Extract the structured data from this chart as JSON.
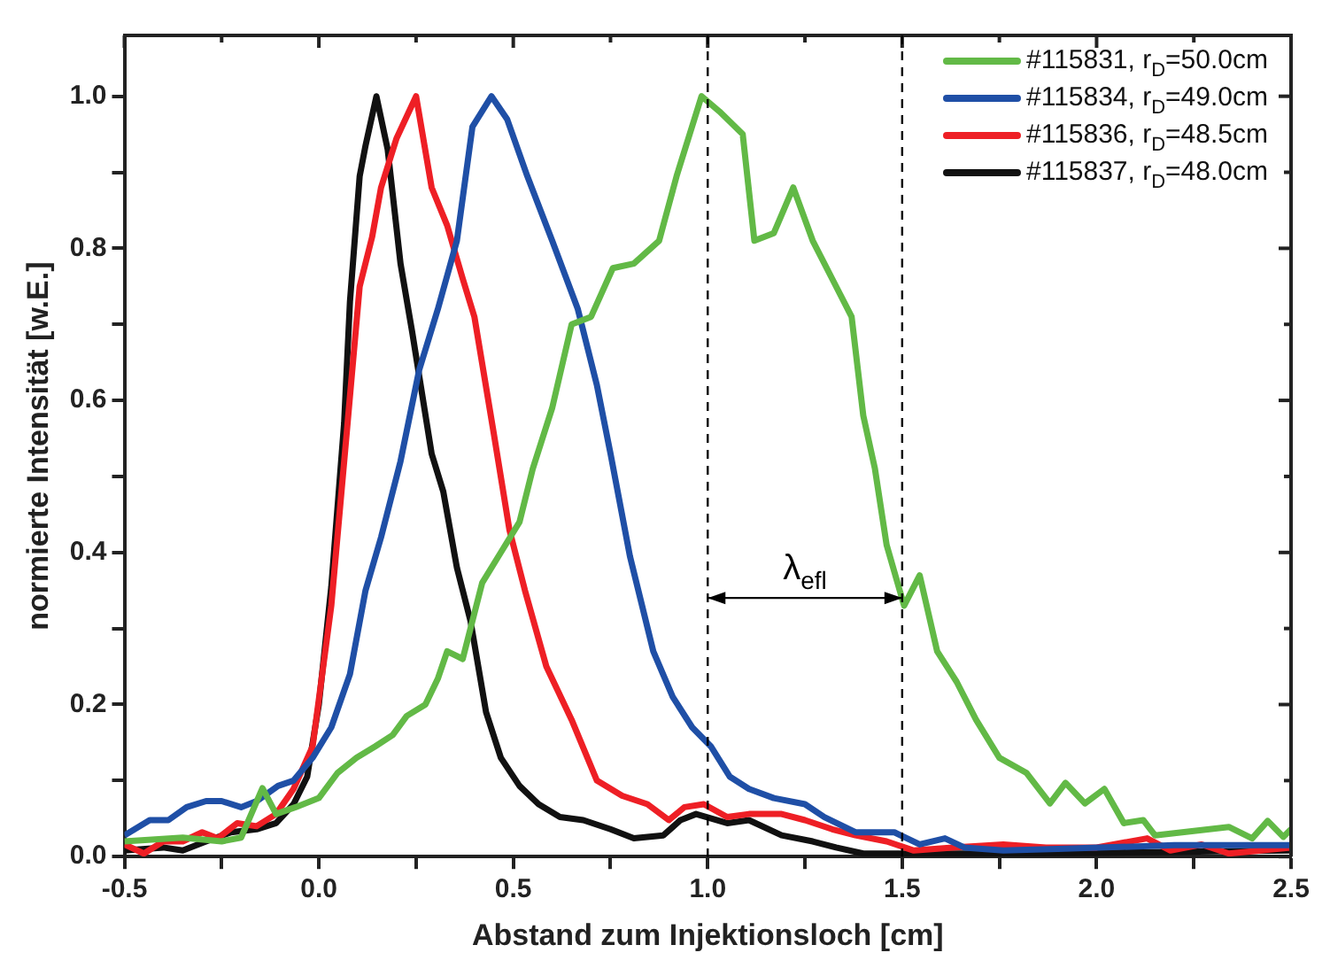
{
  "chart_data": {
    "type": "line",
    "xlabel": "Abstand zum Injektionsloch [cm]",
    "ylabel": "normierte Intensität [w.E.]",
    "xlim": [
      -0.5,
      2.5
    ],
    "ylim": [
      0,
      1.08
    ],
    "xticks": [
      {
        "value": -0.5,
        "label": "-0.5"
      },
      {
        "value": -0.25,
        "label": null
      },
      {
        "value": 0,
        "label": "0.0"
      },
      {
        "value": 0.25,
        "label": null
      },
      {
        "value": 0.5,
        "label": "0.5"
      },
      {
        "value": 0.75,
        "label": null
      },
      {
        "value": 1,
        "label": "1.0"
      },
      {
        "value": 1.25,
        "label": null
      },
      {
        "value": 1.5,
        "label": "1.5"
      },
      {
        "value": 1.75,
        "label": null
      },
      {
        "value": 2,
        "label": "2.0"
      },
      {
        "value": 2.25,
        "label": null
      },
      {
        "value": 2.5,
        "label": "2.5"
      }
    ],
    "yticks": [
      {
        "value": 0,
        "label": "0.0"
      },
      {
        "value": 0.1,
        "label": null
      },
      {
        "value": 0.2,
        "label": "0.2"
      },
      {
        "value": 0.3,
        "label": null
      },
      {
        "value": 0.4,
        "label": "0.4"
      },
      {
        "value": 0.5,
        "label": null
      },
      {
        "value": 0.6,
        "label": "0.6"
      },
      {
        "value": 0.7,
        "label": null
      },
      {
        "value": 0.8,
        "label": "0.8"
      },
      {
        "value": 0.9,
        "label": null
      },
      {
        "value": 1,
        "label": "1.0"
      }
    ],
    "grid": false,
    "legend": "top right",
    "ref_lines": [
      {
        "axis": "x",
        "value": 1.0,
        "color": "#000000",
        "line_style": "dashed"
      },
      {
        "axis": "x",
        "value": 1.5,
        "color": "#000000",
        "line_style": "dashed"
      }
    ],
    "annotations": [
      "λ$_{efl}$"
    ],
    "series": [
      {
        "name": "#115831, r$_{D}$=50.0cm",
        "color": "#62b946",
        "x": [
          -0.5,
          -0.35,
          -0.25,
          -0.2,
          -0.145,
          -0.11,
          -0.06,
          0,
          0.048,
          0.097,
          0.145,
          0.19,
          0.226,
          0.274,
          0.306,
          0.33,
          0.37,
          0.42,
          0.468,
          0.516,
          0.55,
          0.6,
          0.65,
          0.7,
          0.756,
          0.81,
          0.875,
          0.92,
          0.984,
          1.03,
          1.09,
          1.12,
          1.17,
          1.22,
          1.27,
          1.32,
          1.37,
          1.4,
          1.43,
          1.46,
          1.505,
          1.545,
          1.59,
          1.64,
          1.69,
          1.75,
          1.82,
          1.88,
          1.92,
          1.97,
          2.02,
          2.07,
          2.12,
          2.15,
          2.34,
          2.4,
          2.44,
          2.48,
          2.5
        ],
        "values": [
          0.02,
          0.025,
          0.02,
          0.025,
          0.09,
          0.056,
          0.065,
          0.077,
          0.11,
          0.13,
          0.145,
          0.16,
          0.185,
          0.2,
          0.234,
          0.27,
          0.26,
          0.36,
          0.4,
          0.44,
          0.51,
          0.59,
          0.7,
          0.71,
          0.774,
          0.78,
          0.81,
          0.895,
          1.0,
          0.98,
          0.95,
          0.81,
          0.82,
          0.88,
          0.81,
          0.76,
          0.71,
          0.58,
          0.51,
          0.41,
          0.33,
          0.37,
          0.27,
          0.23,
          0.18,
          0.13,
          0.11,
          0.07,
          0.097,
          0.07,
          0.089,
          0.044,
          0.048,
          0.028,
          0.039,
          0.024,
          0.047,
          0.026,
          0.036
        ]
      },
      {
        "name": "#115834, r$_{D}$=49.0cm",
        "color": "#1f4fa6",
        "x": [
          -0.5,
          -0.435,
          -0.387,
          -0.34,
          -0.29,
          -0.25,
          -0.2,
          -0.16,
          -0.105,
          -0.065,
          -0.016,
          0.032,
          0.08,
          0.12,
          0.16,
          0.21,
          0.258,
          0.306,
          0.355,
          0.395,
          0.444,
          0.484,
          0.536,
          0.6,
          0.666,
          0.715,
          0.75,
          0.8,
          0.86,
          0.91,
          0.96,
          1.008,
          1.057,
          1.106,
          1.17,
          1.25,
          1.3,
          1.38,
          1.48,
          1.545,
          1.61,
          1.66,
          1.76,
          1.9,
          2.2,
          2.5
        ],
        "values": [
          0.028,
          0.048,
          0.048,
          0.065,
          0.073,
          0.073,
          0.065,
          0.073,
          0.093,
          0.1,
          0.13,
          0.17,
          0.24,
          0.35,
          0.42,
          0.52,
          0.64,
          0.72,
          0.81,
          0.96,
          1.0,
          0.97,
          0.895,
          0.81,
          0.72,
          0.62,
          0.53,
          0.395,
          0.27,
          0.21,
          0.17,
          0.145,
          0.105,
          0.089,
          0.077,
          0.069,
          0.052,
          0.032,
          0.032,
          0.016,
          0.024,
          0.012,
          0.008,
          0.01,
          0.015,
          0.015
        ]
      },
      {
        "name": "#115836, r$_{D}$=48.5cm",
        "color": "#ee1f25",
        "x": [
          -0.5,
          -0.45,
          -0.4,
          -0.35,
          -0.3,
          -0.26,
          -0.21,
          -0.16,
          -0.11,
          -0.065,
          -0.016,
          0.032,
          0.073,
          0.105,
          0.137,
          0.16,
          0.2,
          0.25,
          0.29,
          0.33,
          0.37,
          0.4,
          0.45,
          0.49,
          0.53,
          0.585,
          0.65,
          0.715,
          0.78,
          0.845,
          0.9,
          0.94,
          0.99,
          1.05,
          1.106,
          1.19,
          1.25,
          1.32,
          1.38,
          1.46,
          1.53,
          1.63,
          1.76,
          1.87,
          2.0,
          2.13,
          2.19,
          2.27,
          2.34,
          2.5
        ],
        "values": [
          0.016,
          0.004,
          0.02,
          0.02,
          0.032,
          0.024,
          0.044,
          0.04,
          0.056,
          0.089,
          0.145,
          0.33,
          0.565,
          0.75,
          0.815,
          0.88,
          0.945,
          1.0,
          0.88,
          0.83,
          0.76,
          0.71,
          0.556,
          0.43,
          0.35,
          0.25,
          0.18,
          0.1,
          0.08,
          0.069,
          0.048,
          0.065,
          0.069,
          0.052,
          0.056,
          0.056,
          0.048,
          0.036,
          0.028,
          0.02,
          0.008,
          0.012,
          0.016,
          0.012,
          0.012,
          0.024,
          0.008,
          0.016,
          0.004,
          0.012
        ]
      },
      {
        "name": "#115837, r$_{D}$=48.0cm",
        "color": "#111111",
        "x": [
          -0.5,
          -0.4,
          -0.35,
          -0.29,
          -0.226,
          -0.16,
          -0.11,
          -0.065,
          -0.03,
          0,
          0.032,
          0.065,
          0.08,
          0.105,
          0.12,
          0.148,
          0.177,
          0.21,
          0.24,
          0.29,
          0.32,
          0.355,
          0.39,
          0.43,
          0.468,
          0.516,
          0.565,
          0.62,
          0.68,
          0.75,
          0.81,
          0.886,
          0.93,
          0.97,
          1.05,
          1.106,
          1.19,
          1.27,
          1.33,
          1.4,
          1.76,
          2.0,
          2.5
        ],
        "values": [
          0.008,
          0.012,
          0.008,
          0.02,
          0.032,
          0.036,
          0.044,
          0.069,
          0.105,
          0.2,
          0.355,
          0.57,
          0.73,
          0.895,
          0.935,
          1.0,
          0.93,
          0.78,
          0.69,
          0.53,
          0.48,
          0.38,
          0.31,
          0.19,
          0.13,
          0.093,
          0.069,
          0.052,
          0.048,
          0.036,
          0.024,
          0.028,
          0.048,
          0.056,
          0.044,
          0.048,
          0.028,
          0.02,
          0.012,
          0.004,
          0.004,
          0.005,
          0.008
        ]
      }
    ]
  }
}
